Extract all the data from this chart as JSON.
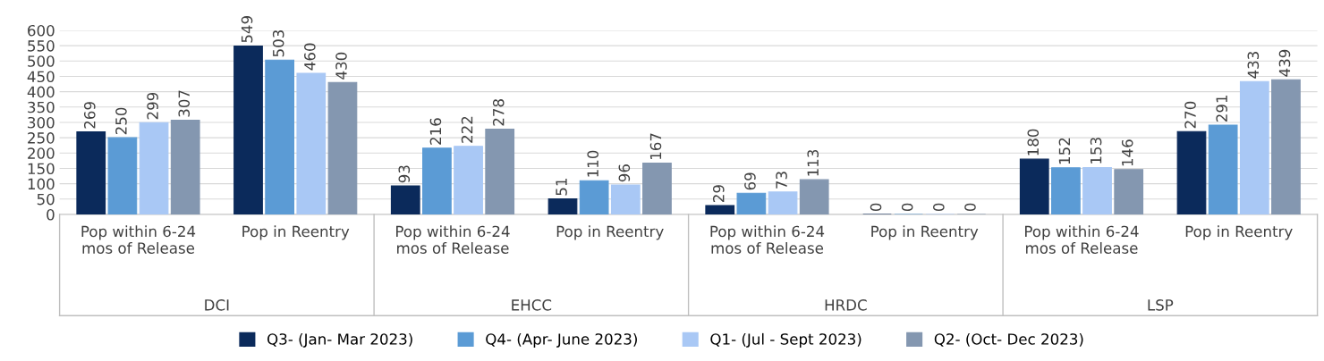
{
  "chart_data": {
    "type": "bar",
    "categories": [
      "Pop within 6-24\nmos of Release",
      "Pop in Reentry",
      "Pop within 6-24\nmos of Release",
      "Pop in Reentry",
      "Pop within 6-24\nmos of Release",
      "Pop in Reentry",
      "Pop within 6-24\nmos of Release",
      "Pop in Reentry"
    ],
    "annotations": [
      "DCI",
      "EHCC",
      "HRDC",
      "LSP"
    ],
    "series": [
      {
        "name": "Q3- (Jan- Mar 2023)",
        "color": "#0b2a5b",
        "values": [
          269,
          549,
          93,
          51,
          29,
          0,
          180,
          270
        ]
      },
      {
        "name": "Q4- (Apr- June 2023)",
        "color": "#5b9bd5",
        "values": [
          250,
          503,
          216,
          110,
          69,
          0,
          152,
          291
        ]
      },
      {
        "name": "Q1- (Jul - Sept 2023)",
        "color": "#a9c8f5",
        "values": [
          299,
          460,
          222,
          96,
          73,
          0,
          153,
          433
        ]
      },
      {
        "name": "Q2- (Oct- Dec 2023)",
        "color": "#8497b0",
        "values": [
          307,
          430,
          278,
          167,
          113,
          0,
          146,
          439
        ]
      }
    ],
    "ylim": [
      0,
      600
    ],
    "yticks": [
      0,
      50,
      100,
      150,
      200,
      250,
      300,
      350,
      400,
      450,
      500,
      550,
      600
    ],
    "grid": "y",
    "legend": "bottom",
    "data_labels": true
  }
}
